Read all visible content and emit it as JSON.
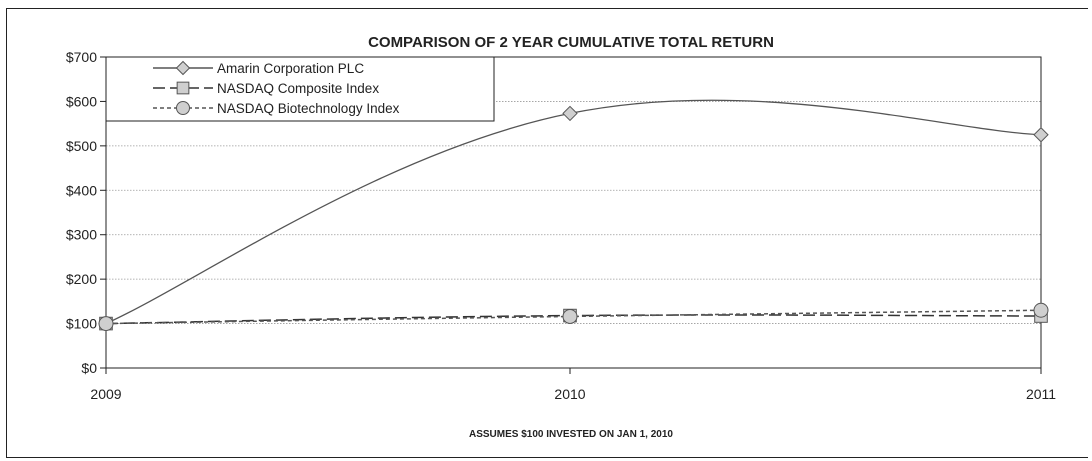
{
  "chart_data": {
    "type": "line",
    "title": "COMPARISON OF 2 YEAR CUMULATIVE TOTAL RETURN",
    "footnote": "ASSUMES $100 INVESTED ON JAN 1, 2010",
    "xlabel": "",
    "ylabel": "",
    "x": [
      "2009",
      "2010",
      "2011"
    ],
    "ylim": [
      0,
      700
    ],
    "yticks": [
      0,
      100,
      200,
      300,
      400,
      500,
      600,
      700
    ],
    "ytick_labels": [
      "$0",
      "$100",
      "$200",
      "$300",
      "$400",
      "$500",
      "$600",
      "$700"
    ],
    "grid": true,
    "legend_position": "top-left",
    "series": [
      {
        "name": "Amarin Corporation PLC",
        "values": [
          100,
          573,
          525
        ],
        "marker": "diamond",
        "style": "solid",
        "color": "#555555"
      },
      {
        "name": "NASDAQ Composite Index",
        "values": [
          100,
          118,
          117
        ],
        "marker": "square",
        "style": "long-dash",
        "color": "#333333"
      },
      {
        "name": "NASDAQ Biotechnology Index",
        "values": [
          100,
          116,
          130
        ],
        "marker": "circle",
        "style": "short-dash",
        "color": "#555555"
      }
    ]
  }
}
